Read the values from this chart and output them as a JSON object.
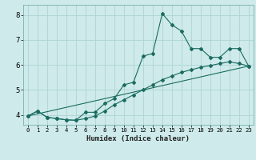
{
  "xlabel": "Humidex (Indice chaleur)",
  "background_color": "#ceeaea",
  "line_color": "#1a6b60",
  "grid_color": "#aed4d4",
  "xlim": [
    -0.5,
    23.5
  ],
  "ylim": [
    3.6,
    8.4
  ],
  "xticks": [
    0,
    1,
    2,
    3,
    4,
    5,
    6,
    7,
    8,
    9,
    10,
    11,
    12,
    13,
    14,
    15,
    16,
    17,
    18,
    19,
    20,
    21,
    22,
    23
  ],
  "yticks": [
    4,
    5,
    6,
    7,
    8
  ],
  "line1_x": [
    0,
    1,
    2,
    3,
    4,
    5,
    6,
    7,
    8,
    9,
    10,
    11,
    12,
    13,
    14,
    15,
    16,
    17,
    18,
    19,
    20,
    21,
    22,
    23
  ],
  "line1_y": [
    3.95,
    4.15,
    3.9,
    3.85,
    3.8,
    3.78,
    4.1,
    4.1,
    4.45,
    4.65,
    5.2,
    5.3,
    6.35,
    6.45,
    8.05,
    7.6,
    7.35,
    6.65,
    6.65,
    6.3,
    6.3,
    6.65,
    6.65,
    5.95
  ],
  "line2_x": [
    0,
    1,
    2,
    3,
    4,
    5,
    6,
    7,
    8,
    9,
    10,
    11,
    12,
    13,
    14,
    15,
    16,
    17,
    18,
    19,
    20,
    21,
    22,
    23
  ],
  "line2_y": [
    3.95,
    4.15,
    3.9,
    3.85,
    3.8,
    3.78,
    3.85,
    3.95,
    4.15,
    4.4,
    4.6,
    4.8,
    5.0,
    5.2,
    5.4,
    5.55,
    5.7,
    5.8,
    5.9,
    5.97,
    6.05,
    6.12,
    6.05,
    5.95
  ],
  "line3_x": [
    0,
    23
  ],
  "line3_y": [
    3.95,
    5.95
  ],
  "xlabel_fontsize": 6.5,
  "tick_fontsize_x": 5.2,
  "tick_fontsize_y": 6.5
}
